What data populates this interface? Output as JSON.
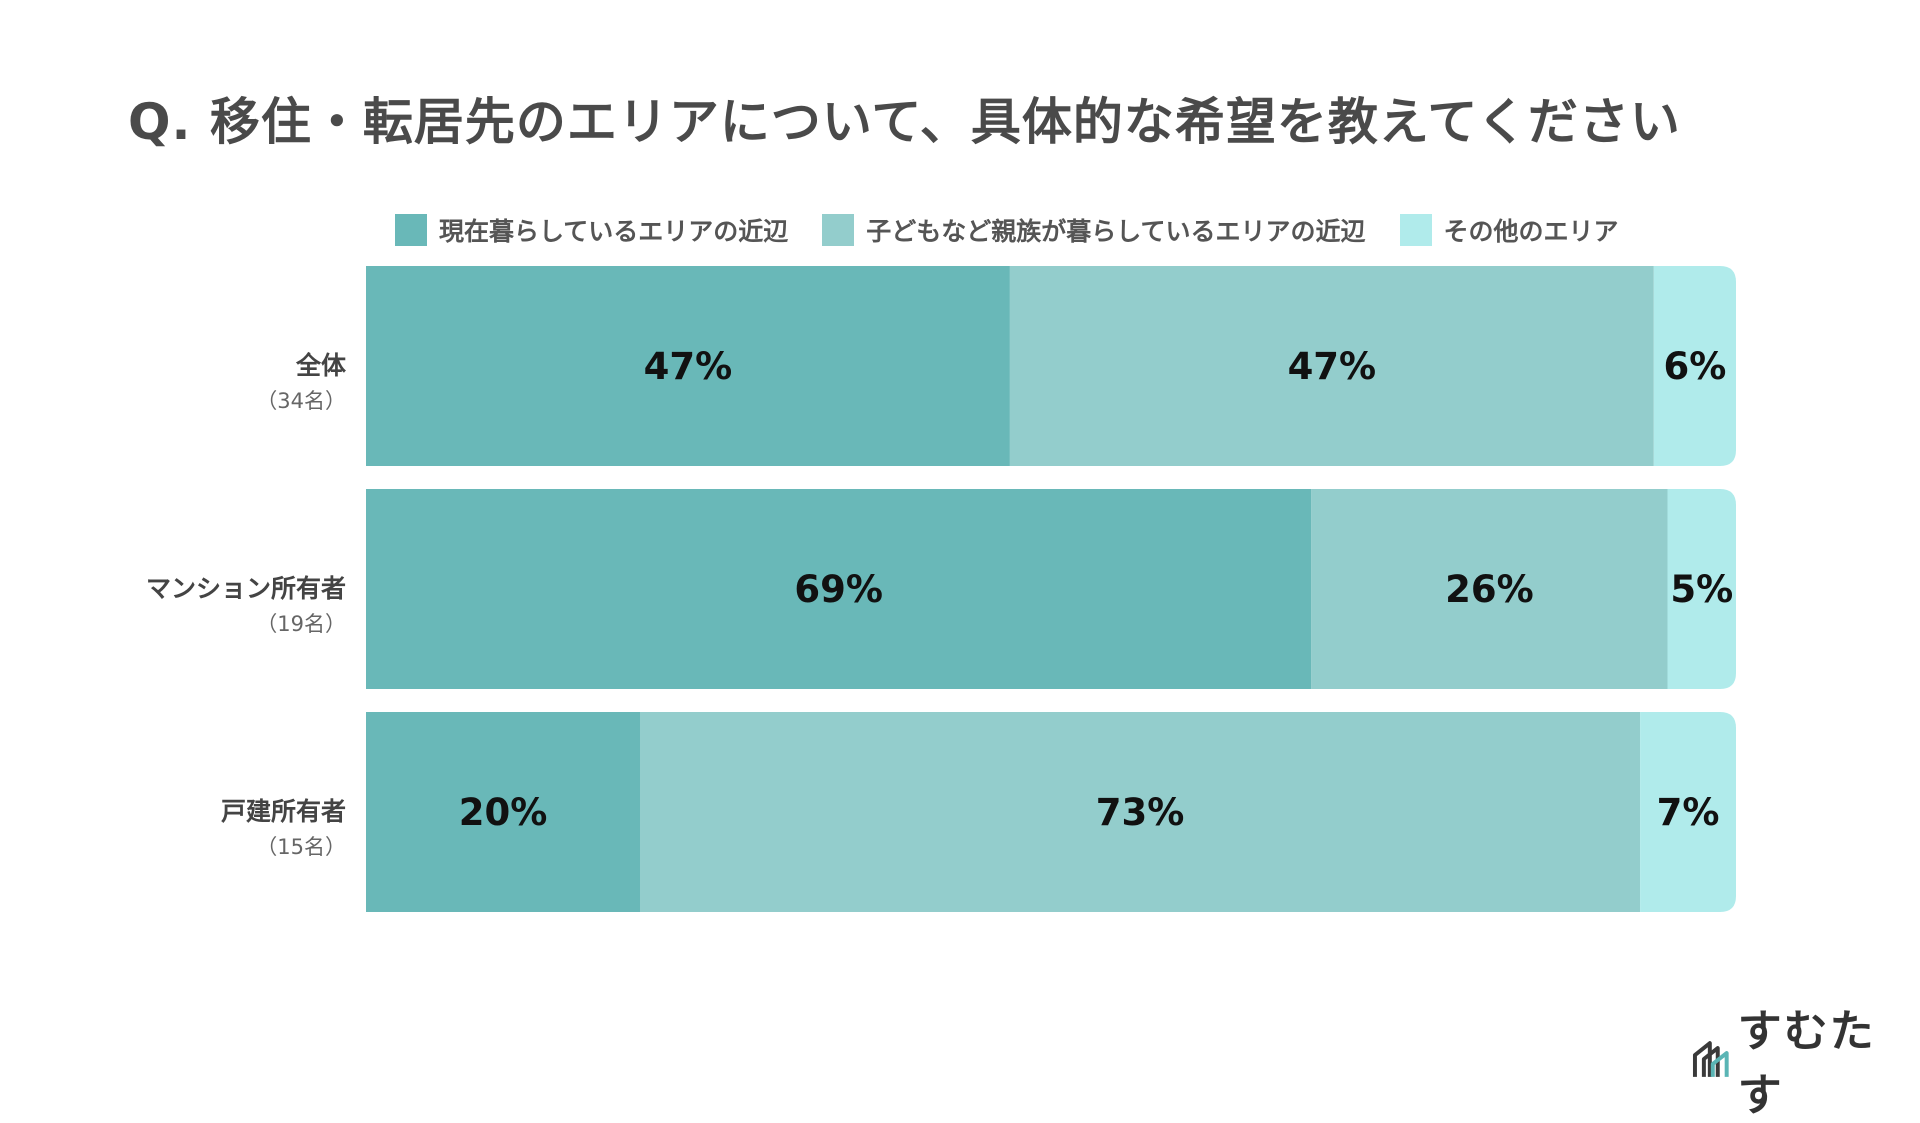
{
  "title": "Q. 移住・転居先のエリアについて、具体的な希望を教えてください",
  "brand": "すむたす",
  "chart_data": {
    "type": "bar",
    "orientation": "horizontal-stacked-100",
    "categories": [
      {
        "name": "全体",
        "count": "（34名）"
      },
      {
        "name": "マンション所有者",
        "count": "（19名）"
      },
      {
        "name": "戸建所有者",
        "count": "（15名）"
      }
    ],
    "series": [
      {
        "name": "現在暮らしているエリアの近辺",
        "color": "#69b8b8",
        "values": [
          47,
          69,
          20
        ]
      },
      {
        "name": "子どもなど親族が暮らしているエリアの近辺",
        "color": "#93cdcc",
        "values": [
          47,
          26,
          73
        ]
      },
      {
        "name": "その他のエリア",
        "color": "#b0ebeb",
        "values": [
          6,
          5,
          7
        ]
      }
    ],
    "unit": "%",
    "legend_position": "top"
  }
}
